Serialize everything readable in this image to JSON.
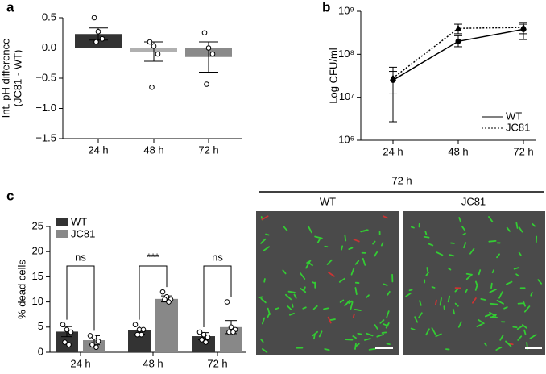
{
  "chart_data": [
    {
      "type": "bar",
      "panel_label": "a",
      "ylabel": [
        "Int. pH difference",
        "(JC81 - WT)"
      ],
      "categories": [
        "24 h",
        "48 h",
        "72 h"
      ],
      "values": [
        0.23,
        -0.06,
        -0.15
      ],
      "errors": [
        0.1,
        0.16,
        0.25
      ],
      "colors": [
        "#333333",
        "#b0b0b0",
        "#8a8a8a"
      ],
      "points": [
        [
          0.5,
          0.27,
          0.15,
          0.1
        ],
        [
          0.1,
          0.03,
          -0.1,
          -0.65
        ],
        [
          0.25,
          0.0,
          -0.1,
          -0.6
        ]
      ],
      "ylim": [
        -1.5,
        0.5
      ],
      "yticks": [
        {
          "value": -1.5,
          "label": "−1.5"
        },
        {
          "value": -1,
          "label": "−1.0"
        },
        {
          "value": -0.5,
          "label": "−0.5"
        },
        {
          "value": 0,
          "label": "0.0"
        },
        {
          "value": 0.5,
          "label": "0.5"
        }
      ]
    },
    {
      "type": "line",
      "panel_label": "b",
      "ylabel": [
        "Log CFU/ml"
      ],
      "log_scale": true,
      "categories": [
        "24 h",
        "48 h",
        "72 h"
      ],
      "series": [
        {
          "name": "WT",
          "color": "#000000",
          "line_style": "solid",
          "marker": "circle",
          "values": [
            25000000,
            200000000,
            380000000
          ],
          "lower": [
            2700000,
            150000000,
            220000000
          ],
          "upper": [
            50000000,
            270000000,
            550000000
          ]
        },
        {
          "name": "JC81",
          "color": "#000000",
          "line_style": "dotted",
          "marker": "triangle",
          "values": [
            28000000,
            400000000,
            420000000
          ],
          "lower": [
            12000000,
            300000000,
            300000000
          ],
          "upper": [
            40000000,
            500000000,
            500000000
          ]
        }
      ],
      "ylim": [
        1000000,
        1000000000
      ],
      "yticks": [
        {
          "value": 1000000,
          "label": "10⁶"
        },
        {
          "value": 10000000,
          "label": "10⁷"
        },
        {
          "value": 100000000,
          "label": "10⁸"
        },
        {
          "value": 1000000000,
          "label": "10⁹"
        }
      ]
    },
    {
      "type": "bar",
      "panel_label": "c",
      "ylabel": [
        "% dead cells"
      ],
      "categories": [
        "24 h",
        "48 h",
        "72 h"
      ],
      "series": [
        {
          "name": "WT",
          "color": "#333333",
          "values": [
            4.1,
            4.4,
            3.2
          ],
          "errors": [
            1.0,
            0.8,
            0.7
          ],
          "points": [
            [
              5.5,
              4.5,
              4,
              2,
              1.5
            ],
            [
              5.5,
              4.5,
              4.5,
              3.5,
              3.5
            ],
            [
              4,
              3.5,
              3,
              2.5,
              2
            ]
          ]
        },
        {
          "name": "JC81",
          "color": "#888888",
          "values": [
            2.4,
            10.6,
            5.0
          ],
          "errors": [
            0.9,
            0.6,
            1.3
          ],
          "points": [
            [
              3.3,
              3,
              2.2,
              1.5,
              1
            ],
            [
              12,
              11,
              10.5,
              10.5,
              10
            ],
            [
              10,
              5,
              4.5,
              4,
              4
            ]
          ]
        }
      ],
      "significance": [
        "ns",
        "***",
        "ns"
      ],
      "ylim": [
        0,
        25
      ],
      "yticks": [
        0,
        5,
        10,
        15,
        20,
        25
      ]
    }
  ],
  "micrograph": {
    "title": "72 h",
    "panels": [
      "WT",
      "JC81"
    ]
  }
}
